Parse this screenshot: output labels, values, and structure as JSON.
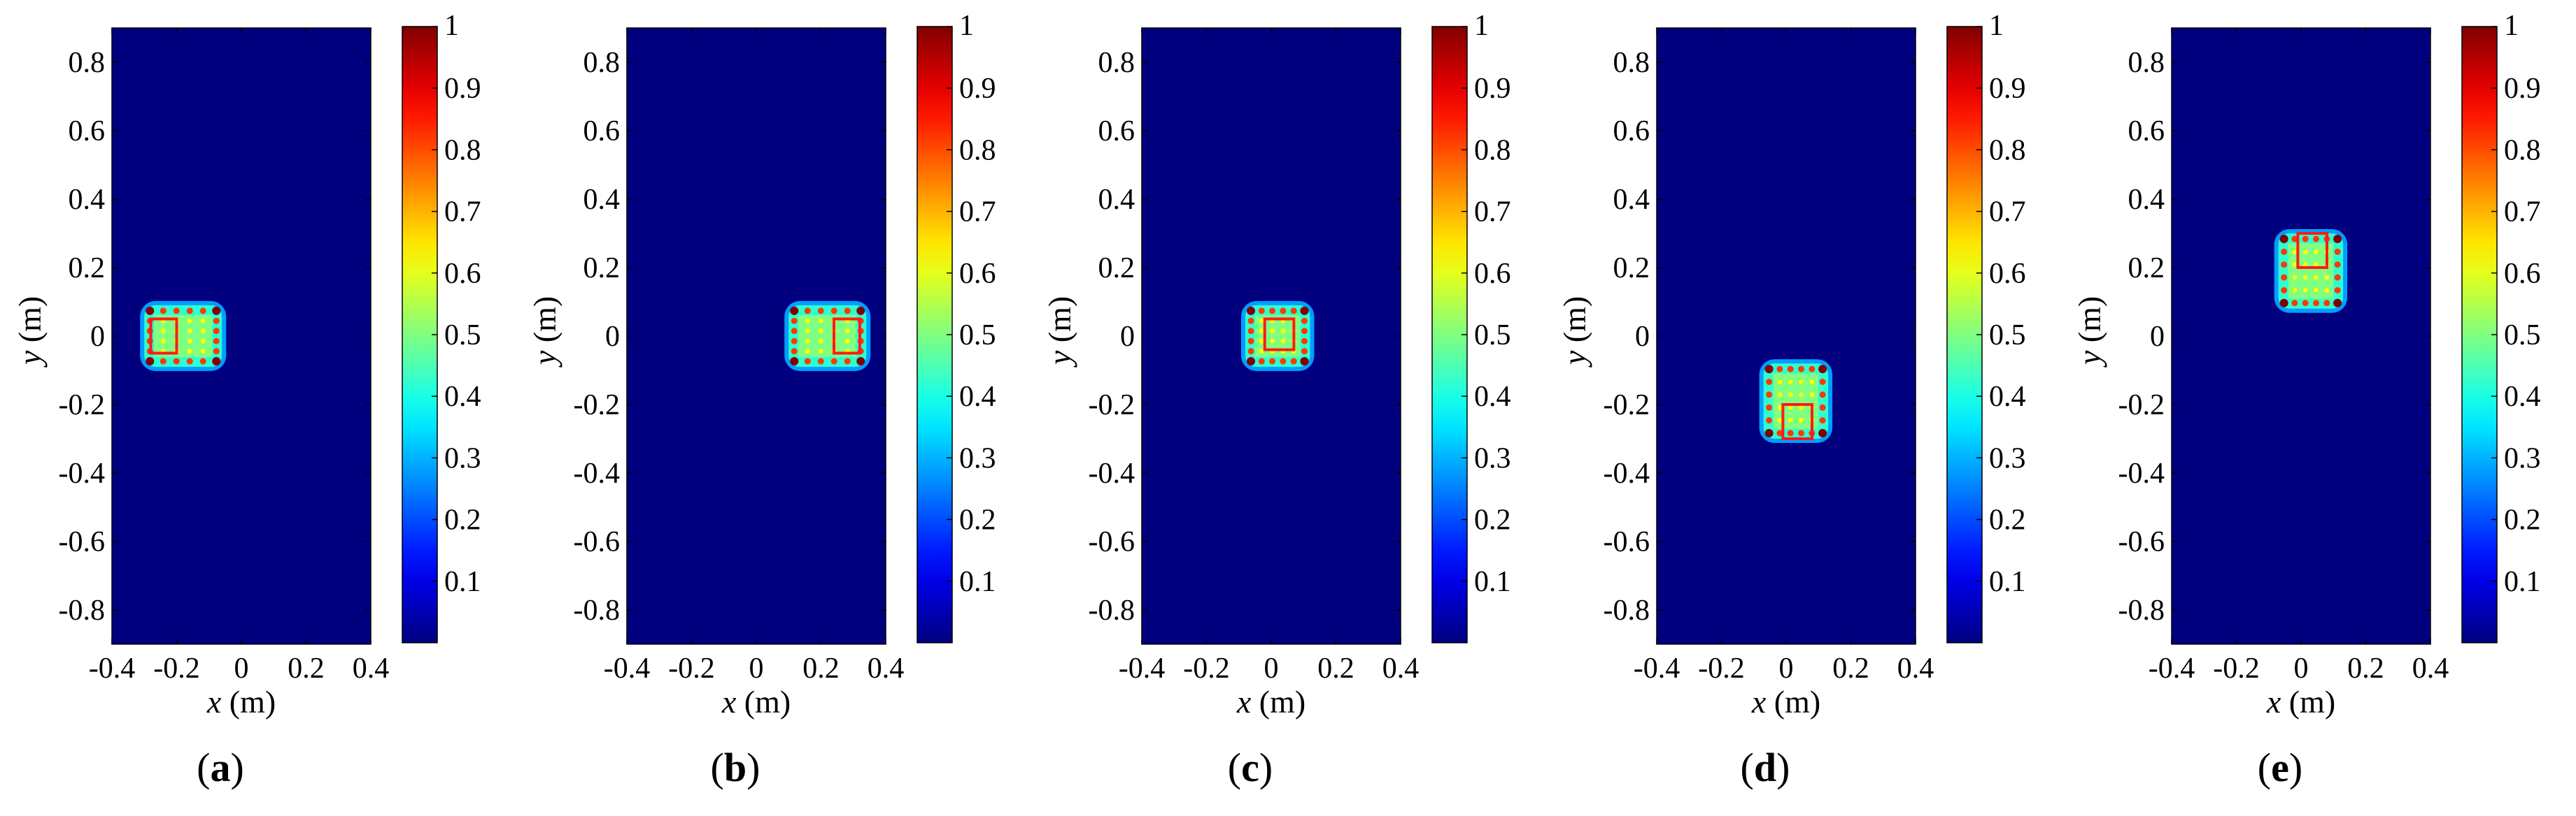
{
  "chart_data": [
    {
      "type": "heatmap",
      "panel_label": "(a)",
      "panel_letter": "a",
      "xlabel_var": "x",
      "xlabel_unit": " (m)",
      "ylabel_var": "y",
      "ylabel_unit": " (m)",
      "xlim": [
        -0.4,
        0.4
      ],
      "ylim": [
        -0.9,
        0.9
      ],
      "xticks": [
        "-0.4",
        "-0.2",
        "0",
        "0.2",
        "0.4"
      ],
      "yticks": [
        "0.8",
        "0.6",
        "0.4",
        "0.2",
        "0",
        "-0.2",
        "-0.4",
        "-0.6",
        "-0.8"
      ],
      "colorbar": {
        "range": [
          0,
          1
        ],
        "ticks": [
          "1",
          "0.9",
          "0.8",
          "0.7",
          "0.6",
          "0.5",
          "0.4",
          "0.3",
          "0.2",
          "0.1"
        ]
      },
      "intensity_region": {
        "x_min": -0.3,
        "x_max": -0.06,
        "y_min": -0.09,
        "y_max": 0.09,
        "peak_value": 1.0
      },
      "red_box": {
        "x_min": -0.28,
        "x_max": -0.2,
        "y_min": -0.05,
        "y_max": 0.05
      }
    },
    {
      "type": "heatmap",
      "panel_label": "(b)",
      "panel_letter": "b",
      "xlabel_var": "x",
      "xlabel_unit": " (m)",
      "ylabel_var": "y",
      "ylabel_unit": " (m)",
      "xlim": [
        -0.4,
        0.4
      ],
      "ylim": [
        -0.9,
        0.9
      ],
      "xticks": [
        "-0.4",
        "-0.2",
        "0",
        "0.2",
        "0.4"
      ],
      "yticks": [
        "0.8",
        "0.6",
        "0.4",
        "0.2",
        "0",
        "-0.2",
        "-0.4",
        "-0.6",
        "-0.8"
      ],
      "colorbar": {
        "range": [
          0,
          1
        ],
        "ticks": [
          "1",
          "0.9",
          "0.8",
          "0.7",
          "0.6",
          "0.5",
          "0.4",
          "0.3",
          "0.2",
          "0.1"
        ]
      },
      "intensity_region": {
        "x_min": 0.1,
        "x_max": 0.34,
        "y_min": -0.09,
        "y_max": 0.09,
        "peak_value": 1.0
      },
      "red_box": {
        "x_min": 0.24,
        "x_max": 0.32,
        "y_min": -0.05,
        "y_max": 0.05
      }
    },
    {
      "type": "heatmap",
      "panel_label": "(c)",
      "panel_letter": "c",
      "xlabel_var": "x",
      "xlabel_unit": " (m)",
      "ylabel_var": "y",
      "ylabel_unit": " (m)",
      "xlim": [
        -0.4,
        0.4
      ],
      "ylim": [
        -0.9,
        0.9
      ],
      "xticks": [
        "-0.4",
        "-0.2",
        "0",
        "0.2",
        "0.4"
      ],
      "yticks": [
        "0.8",
        "0.6",
        "0.4",
        "0.2",
        "0",
        "-0.2",
        "-0.4",
        "-0.6",
        "-0.8"
      ],
      "colorbar": {
        "range": [
          0,
          1
        ],
        "ticks": [
          "1",
          "0.9",
          "0.8",
          "0.7",
          "0.6",
          "0.5",
          "0.4",
          "0.3",
          "0.2",
          "0.1"
        ]
      },
      "intensity_region": {
        "x_min": -0.08,
        "x_max": 0.12,
        "y_min": -0.09,
        "y_max": 0.09,
        "peak_value": 1.0
      },
      "red_box": {
        "x_min": -0.02,
        "x_max": 0.07,
        "y_min": -0.04,
        "y_max": 0.05
      }
    },
    {
      "type": "heatmap",
      "panel_label": "(d)",
      "panel_letter": "d",
      "xlabel_var": "x",
      "xlabel_unit": " (m)",
      "ylabel_var": "y",
      "ylabel_unit": " (m)",
      "xlim": [
        -0.4,
        0.4
      ],
      "ylim": [
        -0.9,
        0.9
      ],
      "xticks": [
        "-0.4",
        "-0.2",
        "0",
        "0.2",
        "0.4"
      ],
      "yticks": [
        "0.8",
        "0.6",
        "0.4",
        "0.2",
        "0",
        "-0.2",
        "-0.4",
        "-0.6",
        "-0.8"
      ],
      "colorbar": {
        "range": [
          0,
          1
        ],
        "ticks": [
          "1",
          "0.9",
          "0.8",
          "0.7",
          "0.6",
          "0.5",
          "0.4",
          "0.3",
          "0.2",
          "0.1"
        ]
      },
      "intensity_region": {
        "x_min": -0.07,
        "x_max": 0.13,
        "y_min": -0.3,
        "y_max": -0.08,
        "peak_value": 1.0
      },
      "red_box": {
        "x_min": -0.01,
        "x_max": 0.08,
        "y_min": -0.3,
        "y_max": -0.2
      }
    },
    {
      "type": "heatmap",
      "panel_label": "(e)",
      "panel_letter": "e",
      "xlabel_var": "x",
      "xlabel_unit": " (m)",
      "ylabel_var": "y",
      "ylabel_unit": " (m)",
      "xlim": [
        -0.4,
        0.4
      ],
      "ylim": [
        -0.9,
        0.9
      ],
      "xticks": [
        "-0.4",
        "-0.2",
        "0",
        "0.2",
        "0.4"
      ],
      "yticks": [
        "0.8",
        "0.6",
        "0.4",
        "0.2",
        "0",
        "-0.2",
        "-0.4",
        "-0.6",
        "-0.8"
      ],
      "colorbar": {
        "range": [
          0,
          1
        ],
        "ticks": [
          "1",
          "0.9",
          "0.8",
          "0.7",
          "0.6",
          "0.5",
          "0.4",
          "0.3",
          "0.2",
          "0.1"
        ]
      },
      "intensity_region": {
        "x_min": -0.07,
        "x_max": 0.13,
        "y_min": 0.08,
        "y_max": 0.3,
        "peak_value": 1.0
      },
      "red_box": {
        "x_min": -0.01,
        "x_max": 0.08,
        "y_min": 0.2,
        "y_max": 0.3
      }
    }
  ],
  "colors": {
    "background_blue": "#00007f",
    "marker_box": "#ff1a1a"
  }
}
